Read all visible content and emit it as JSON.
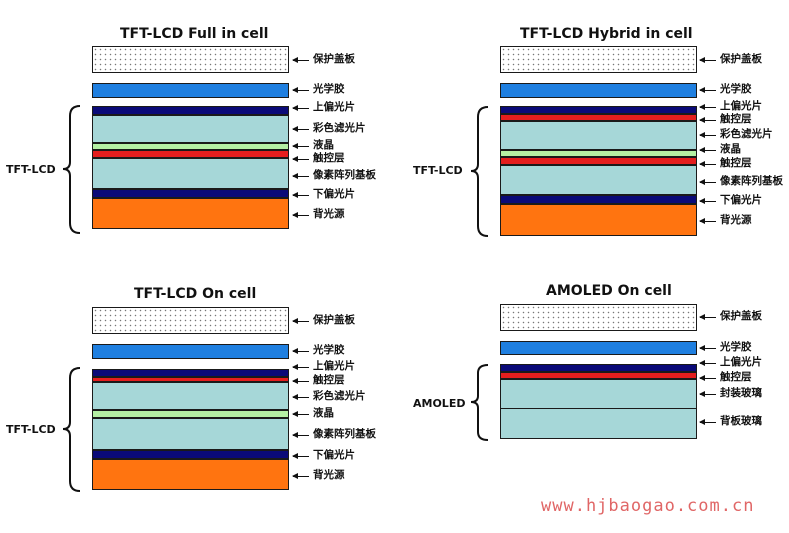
{
  "colors": {
    "cover": "#ffffff",
    "oca": "#1f7fe0",
    "polarizer": "#0a0a78",
    "touch": "#e41e1e",
    "color_filter": "#a6d7d8",
    "liquid_crystal": "#b5f0a4",
    "tft_array": "#a6d7d8",
    "backlight": "#ff7410",
    "glass": "#a6d7d8"
  },
  "panels": [
    {
      "title": "TFT-LCD  Full in cell",
      "side_label": "TFT-LCD",
      "layers": [
        "保护盖板",
        "光学胶",
        "上偏光片",
        "彩色滤光片",
        "液晶",
        "触控层",
        "像素阵列基板",
        "下偏光片",
        "背光源"
      ]
    },
    {
      "title": "TFT-LCD Hybrid in cell",
      "side_label": "TFT-LCD",
      "layers": [
        "保护盖板",
        "光学胶",
        "上偏光片",
        "触控层",
        "彩色滤光片",
        "液晶",
        "触控层",
        "像素阵列基板",
        "下偏光片",
        "背光源"
      ]
    },
    {
      "title": "TFT-LCD On cell",
      "side_label": "TFT-LCD",
      "layers": [
        "保护盖板",
        "光学胶",
        "上偏光片",
        "触控层",
        "彩色滤光片",
        "液晶",
        "像素阵列基板",
        "下偏光片",
        "背光源"
      ]
    },
    {
      "title": "AMOLED On cell",
      "side_label": "AMOLED",
      "layers": [
        "保护盖板",
        "光学胶",
        "上偏光片",
        "触控层",
        "封装玻璃",
        "背板玻璃"
      ]
    }
  ],
  "watermark": "www.hjbaogao.com.cn"
}
